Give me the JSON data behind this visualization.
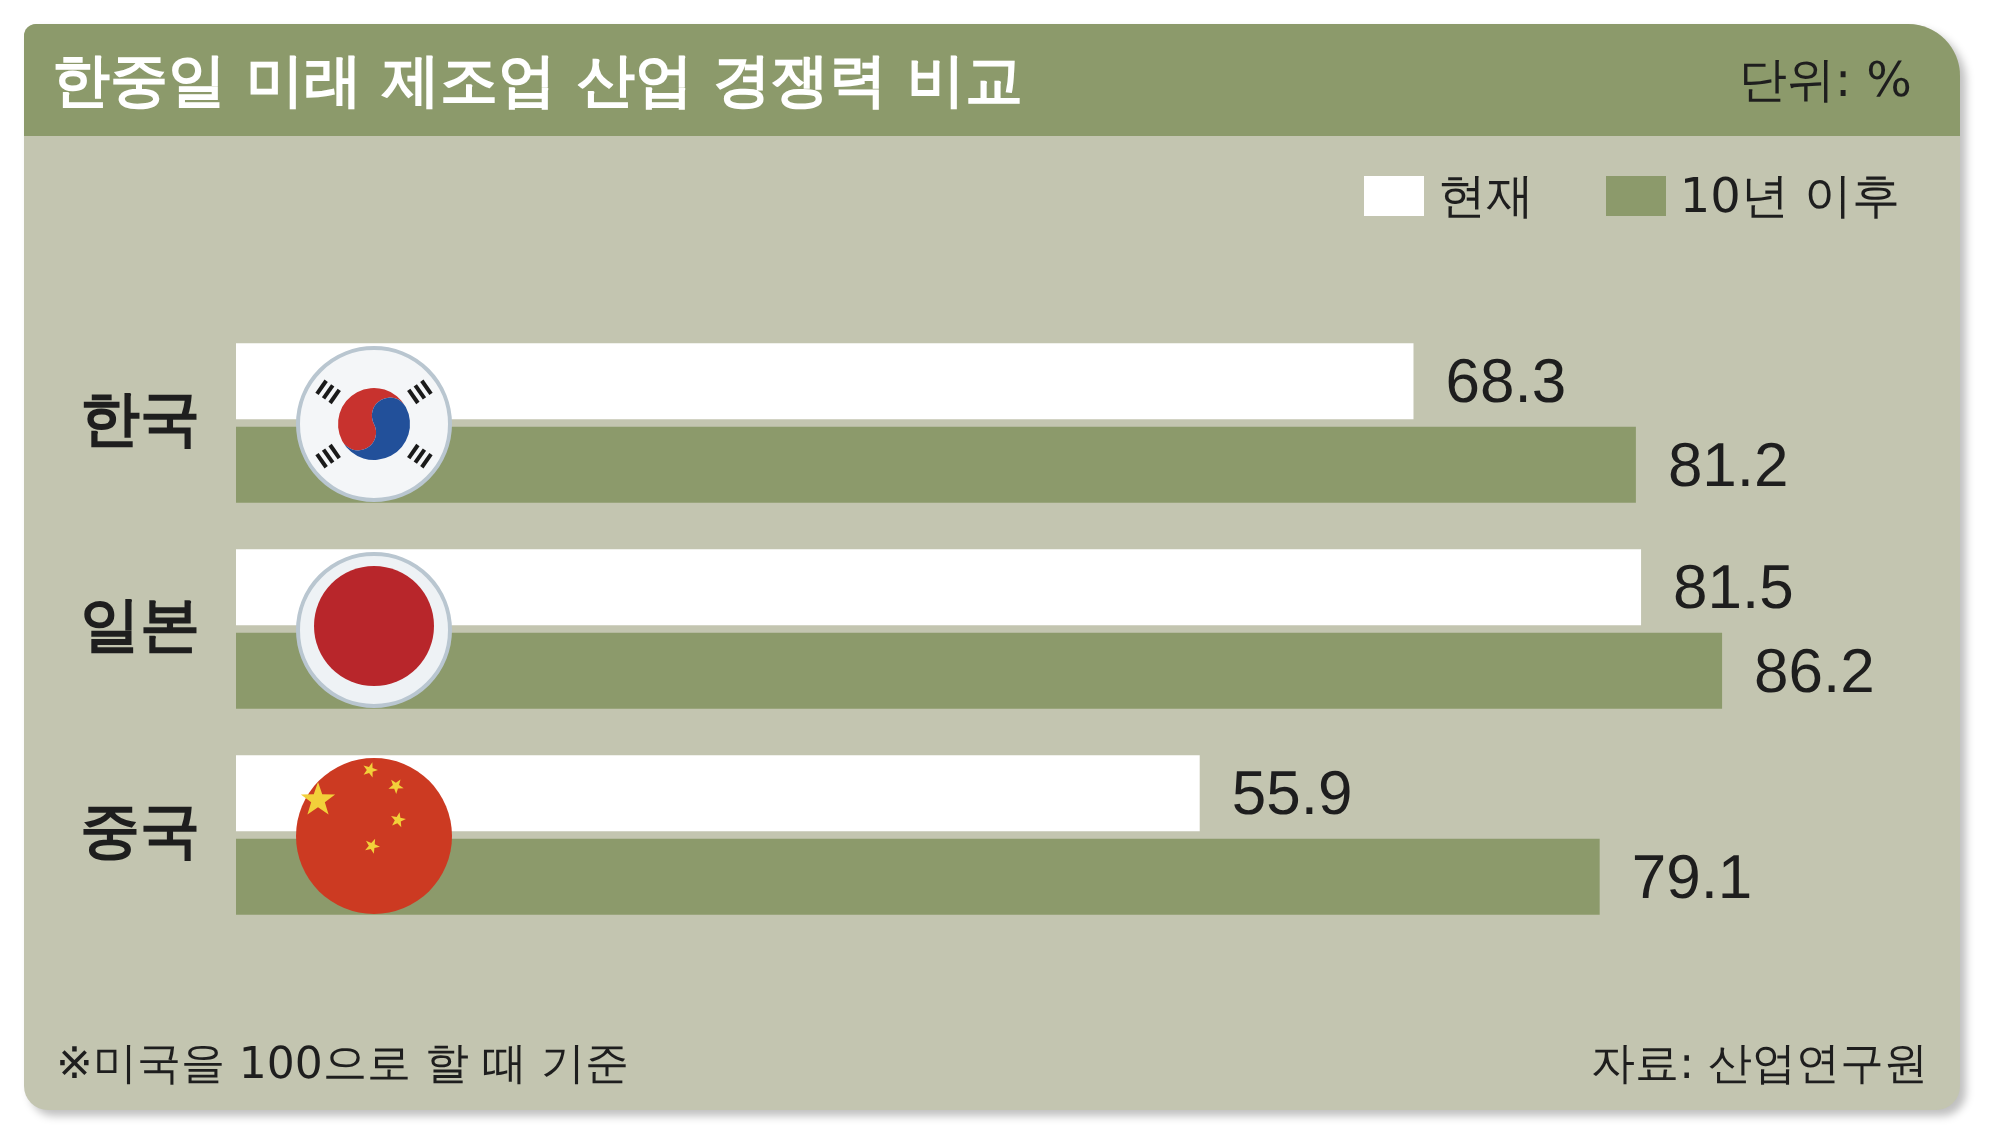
{
  "chart_data": {
    "type": "bar",
    "orientation": "horizontal",
    "title": "한중일 미래 제조업 산업 경쟁력 비교",
    "categories": [
      "한국",
      "일본",
      "중국"
    ],
    "series": [
      {
        "name": "현재",
        "color": "#ffffff",
        "values": [
          68.3,
          81.5,
          55.9
        ]
      },
      {
        "name": "10년 이후",
        "color": "#8c9a6b",
        "values": [
          81.2,
          86.2,
          79.1
        ]
      }
    ],
    "xlim": [
      0,
      100
    ],
    "tick_labels": "y",
    "legend": "top right",
    "data_labels": true,
    "annotations": [
      "단위: %",
      "※미국을 100으로 할 때 기준",
      "자료: 산업연구원"
    ]
  }
}
